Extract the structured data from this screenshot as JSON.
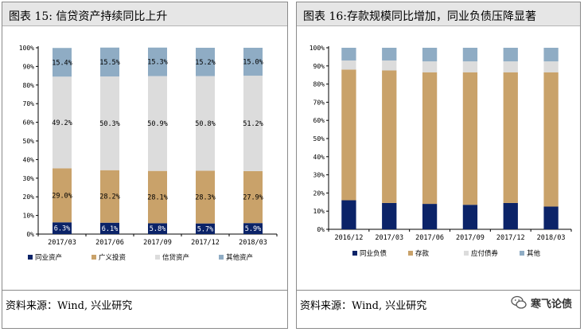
{
  "left_panel": {
    "title": "图表 15: 信贷资产持续同比上升",
    "source": "资料来源：Wind, 兴业研究"
  },
  "right_panel": {
    "title": "图表 16:存款规模同比增加，同业负债压降显著",
    "source": "资料来源：Wind, 兴业研究"
  },
  "watermark": {
    "text": "寒飞论债",
    "icon": "wechat-icon"
  },
  "chart_data": [
    {
      "type": "bar",
      "stacked": "percent",
      "title": "图表 15: 信贷资产持续同比上升",
      "categories": [
        "2017/03",
        "2017/06",
        "2017/09",
        "2017/12",
        "2018/03"
      ],
      "series": [
        {
          "name": "同业资产",
          "color": "#0b2368",
          "values": [
            6.3,
            6.1,
            5.8,
            5.7,
            5.9
          ]
        },
        {
          "name": "广义投资",
          "color": "#c9a26a",
          "values": [
            29.0,
            28.2,
            28.1,
            28.3,
            27.9
          ]
        },
        {
          "name": "信贷资产",
          "color": "#dcdcdc",
          "values": [
            49.2,
            50.3,
            50.9,
            50.8,
            51.2
          ]
        },
        {
          "name": "其他资产",
          "color": "#8facc4",
          "values": [
            15.4,
            15.5,
            15.3,
            15.2,
            15.0
          ]
        }
      ],
      "data_labels": [
        [
          "6.3%",
          "6.1%",
          "5.8%",
          "5.7%",
          "5.9%"
        ],
        [
          "29.0%",
          "28.2%",
          "28.1%",
          "28.3%",
          "27.9%"
        ],
        [
          "49.2%",
          "50.3%",
          "50.9%",
          "50.8%",
          "51.2%"
        ],
        [
          "15.4%",
          "15.5%",
          "15.3%",
          "15.2%",
          "15.0%"
        ]
      ],
      "y_ticks": [
        "0%",
        "10%",
        "20%",
        "30%",
        "40%",
        "50%",
        "60%",
        "70%",
        "80%",
        "90%",
        "100%"
      ],
      "ylim": [
        0,
        100
      ],
      "grid": false,
      "legend": "bottom"
    },
    {
      "type": "bar",
      "stacked": "percent",
      "title": "图表 16:存款规模同比增加，同业负债压降显著",
      "categories": [
        "2016/12",
        "2017/03",
        "2017/06",
        "2017/09",
        "2017/12",
        "2018/03"
      ],
      "series": [
        {
          "name": "同业负债",
          "color": "#0b2368",
          "values": [
            16.0,
            14.5,
            14.0,
            13.5,
            14.5,
            12.5
          ]
        },
        {
          "name": "存款",
          "color": "#c9a26a",
          "values": [
            72.0,
            73.0,
            72.5,
            73.0,
            72.0,
            74.0
          ]
        },
        {
          "name": "应付债券",
          "color": "#dcdcdc",
          "values": [
            5.0,
            5.5,
            6.0,
            6.0,
            6.0,
            6.0
          ]
        },
        {
          "name": "其他",
          "color": "#8facc4",
          "values": [
            7.0,
            7.0,
            7.5,
            7.5,
            7.5,
            7.5
          ]
        }
      ],
      "y_ticks": [
        "0%",
        "10%",
        "20%",
        "30%",
        "40%",
        "50%",
        "60%",
        "70%",
        "80%",
        "90%",
        "100%"
      ],
      "ylim": [
        0,
        100
      ],
      "grid": false,
      "legend": "bottom"
    }
  ]
}
